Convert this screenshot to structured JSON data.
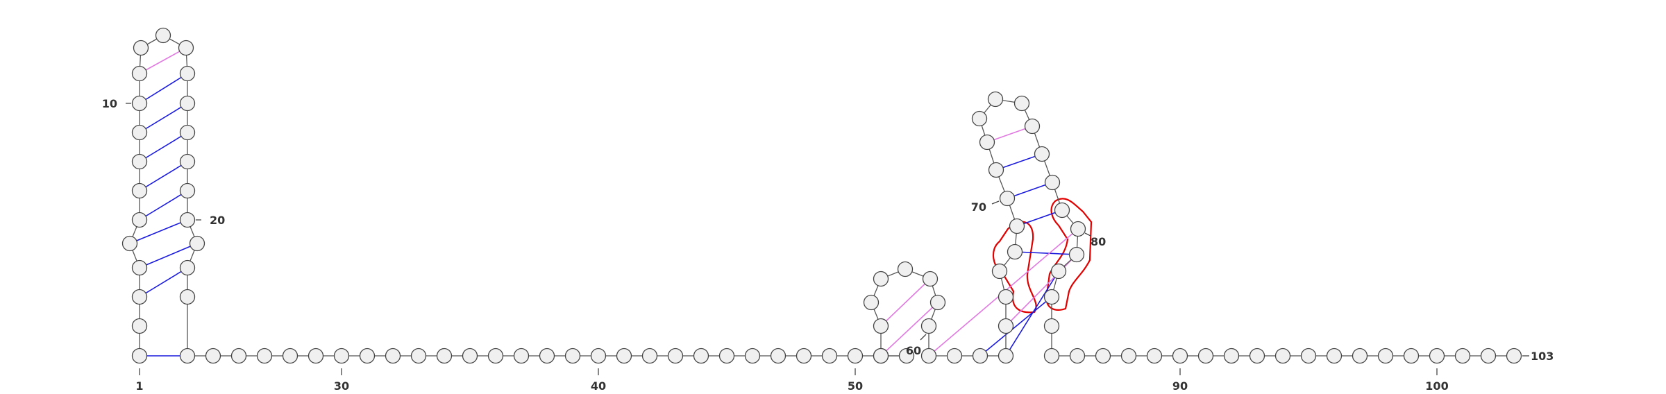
{
  "diagram": {
    "type": "rna-secondary-structure",
    "sequence_length": 103,
    "end_label": "103",
    "axis_ticks": [
      {
        "n": 1,
        "label": "1"
      },
      {
        "n": 30,
        "label": "30"
      },
      {
        "n": 40,
        "label": "40"
      },
      {
        "n": 50,
        "label": "50"
      },
      {
        "n": 90,
        "label": "90"
      },
      {
        "n": 100,
        "label": "100"
      }
    ],
    "side_labels": [
      {
        "n": 10,
        "label": "10"
      },
      {
        "n": 20,
        "label": "20"
      },
      {
        "n": 60,
        "label": "60"
      },
      {
        "n": 70,
        "label": "70"
      },
      {
        "n": 80,
        "label": "80"
      }
    ],
    "pairs": [
      {
        "i": 1,
        "j": 24,
        "kind": "canonical"
      },
      {
        "i": 3,
        "j": 22,
        "kind": "canonical"
      },
      {
        "i": 4,
        "j": 21,
        "kind": "canonical"
      },
      {
        "i": 5,
        "j": 20,
        "kind": "canonical"
      },
      {
        "i": 6,
        "j": 19,
        "kind": "canonical"
      },
      {
        "i": 7,
        "j": 18,
        "kind": "canonical"
      },
      {
        "i": 8,
        "j": 17,
        "kind": "canonical"
      },
      {
        "i": 9,
        "j": 16,
        "kind": "canonical"
      },
      {
        "i": 10,
        "j": 15,
        "kind": "canonical"
      },
      {
        "i": 11,
        "j": 14,
        "kind": "noncanonical"
      },
      {
        "i": 54,
        "j": 58,
        "kind": "noncanonical"
      },
      {
        "i": 53,
        "j": 59,
        "kind": "noncanonical"
      },
      {
        "i": 63,
        "j": 83,
        "kind": "canonical"
      },
      {
        "i": 64,
        "j": 82,
        "kind": "canonical"
      },
      {
        "i": 68,
        "j": 81,
        "kind": "canonical"
      },
      {
        "i": 69,
        "j": 79,
        "kind": "canonical"
      },
      {
        "i": 70,
        "j": 78,
        "kind": "canonical"
      },
      {
        "i": 71,
        "j": 77,
        "kind": "canonical"
      },
      {
        "i": 72,
        "j": 76,
        "kind": "noncanonical"
      },
      {
        "i": 61,
        "j": 80,
        "kind": "noncanonical"
      },
      {
        "i": 65,
        "j": 81,
        "kind": "noncanonical"
      }
    ],
    "highlight_color": "#e00000",
    "colors": {
      "canonical": "#1a1add",
      "noncanonical": "#e07ae0",
      "backbone": "#555555",
      "node_fill": "#f0f0f0",
      "node_stroke": "#444444"
    }
  }
}
